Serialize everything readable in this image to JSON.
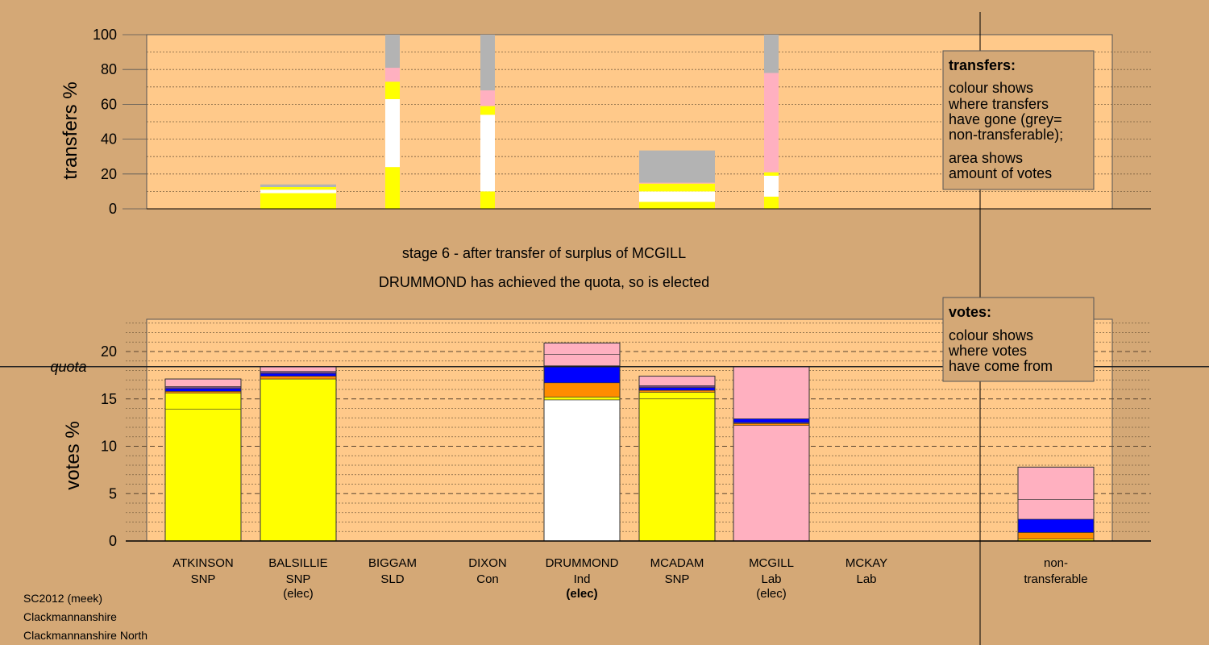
{
  "colors": {
    "background": "#d4a876",
    "plot": "#ffc98a",
    "SNP": "#ffff00",
    "Ind": "#ffffff",
    "Lab": "#ffb0c0",
    "Con": "#0000ff",
    "SLD": "#ff8c00",
    "other": "#7a4a8a",
    "nontransferable": "#b3b3b3"
  },
  "stage": {
    "line1": "stage 6 - after transfer of surplus of MCGILL",
    "line2": "DRUMMOND has achieved the quota, so is elected"
  },
  "footer": [
    "SC2012 (meek)",
    "Clackmannanshire",
    "Clackmannanshire North"
  ],
  "legend_transfers": {
    "title": "transfers:",
    "lines": [
      "colour shows",
      "where transfers",
      "have gone (grey=",
      "non-transferable);"
    ],
    "lines2": [
      "area shows",
      "amount of votes"
    ]
  },
  "legend_votes": {
    "title": "votes:",
    "lines": [
      "colour shows",
      "where votes",
      "have come from"
    ]
  },
  "chart_data": [
    {
      "type": "bar",
      "stacked": true,
      "ylabel": "transfers %",
      "ylim": [
        0,
        100
      ],
      "yticks": [
        "0",
        "20",
        "40",
        "60",
        "80",
        "100"
      ],
      "grid": true,
      "categories": [
        "ATKINSON",
        "BALSILLIE",
        "BIGGAM",
        "DIXON",
        "DRUMMOND",
        "MCADAM",
        "MCGILL",
        "MCKAY"
      ],
      "bars": [
        {
          "category": "BALSILLIE",
          "segments": [
            {
              "party": "SNP",
              "value": 9
            },
            {
              "party": "Ind",
              "value": 2
            },
            {
              "party": "SNP",
              "value": 1.5
            },
            {
              "party": "nontransferable",
              "value": 1.5
            }
          ]
        },
        {
          "category": "BIGGAM",
          "segments": [
            {
              "party": "SNP",
              "value": 24
            },
            {
              "party": "Ind",
              "value": 39
            },
            {
              "party": "SNP",
              "value": 10
            },
            {
              "party": "Lab",
              "value": 8
            },
            {
              "party": "nontransferable",
              "value": 19
            }
          ]
        },
        {
          "category": "DIXON",
          "segments": [
            {
              "party": "SNP",
              "value": 10
            },
            {
              "party": "Ind",
              "value": 44
            },
            {
              "party": "SNP",
              "value": 5
            },
            {
              "party": "Lab",
              "value": 9
            },
            {
              "party": "nontransferable",
              "value": 32
            }
          ]
        },
        {
          "category": "MCADAM",
          "segments": [
            {
              "party": "SNP",
              "value": 4
            },
            {
              "party": "Ind",
              "value": 6
            },
            {
              "party": "SNP",
              "value": 4.5
            },
            {
              "party": "Lab",
              "value": 0.5
            },
            {
              "party": "nontransferable",
              "value": 18.5
            }
          ]
        },
        {
          "category": "MCGILL",
          "segments": [
            {
              "party": "SNP",
              "value": 7
            },
            {
              "party": "Ind",
              "value": 12
            },
            {
              "party": "SNP",
              "value": 2
            },
            {
              "party": "Lab",
              "value": 57
            },
            {
              "party": "nontransferable",
              "value": 22
            }
          ]
        }
      ]
    },
    {
      "type": "bar",
      "stacked": true,
      "ylabel": "votes %",
      "ylim": [
        0,
        23.5
      ],
      "yticks": [
        "0",
        "5",
        "10",
        "15",
        "20"
      ],
      "quota": 18.4,
      "quota_label": "quota",
      "grid": true,
      "categories": [
        {
          "name": "ATKINSON",
          "party": "SNP",
          "note": ""
        },
        {
          "name": "BALSILLIE",
          "party": "SNP",
          "note": "(elec)"
        },
        {
          "name": "BIGGAM",
          "party": "SLD",
          "note": ""
        },
        {
          "name": "DIXON",
          "party": "Con",
          "note": ""
        },
        {
          "name": "DRUMMOND",
          "party": "Ind",
          "note": "(elec)"
        },
        {
          "name": "MCADAM",
          "party": "SNP",
          "note": ""
        },
        {
          "name": "MCGILL",
          "party": "Lab",
          "note": "(elec)"
        },
        {
          "name": "MCKAY",
          "party": "Lab",
          "note": ""
        }
      ],
      "nontransferable_label": [
        "non-",
        "transferable"
      ],
      "bars": [
        {
          "category": "ATKINSON",
          "segments": [
            {
              "party": "SNP",
              "value": 13.9
            },
            {
              "party": "SNP",
              "value": 1.7
            },
            {
              "party": "SLD",
              "value": 0.2
            },
            {
              "party": "Con",
              "value": 0.3
            },
            {
              "party": "other",
              "value": 0.2
            },
            {
              "party": "Lab",
              "value": 0.8
            }
          ]
        },
        {
          "category": "BALSILLIE",
          "segments": [
            {
              "party": "SNP",
              "value": 17.1
            },
            {
              "party": "SLD",
              "value": 0.3
            },
            {
              "party": "Con",
              "value": 0.3
            },
            {
              "party": "other",
              "value": 0.2
            },
            {
              "party": "Lab",
              "value": 0.5
            }
          ]
        },
        {
          "category": "DRUMMOND",
          "segments": [
            {
              "party": "Ind",
              "value": 14.9
            },
            {
              "party": "SNP",
              "value": 0.3
            },
            {
              "party": "SLD",
              "value": 1.5
            },
            {
              "party": "Con",
              "value": 1.8
            },
            {
              "party": "Lab",
              "value": 1.2
            },
            {
              "party": "Lab",
              "value": 1.2
            }
          ]
        },
        {
          "category": "MCADAM",
          "segments": [
            {
              "party": "SNP",
              "value": 15.0
            },
            {
              "party": "SNP",
              "value": 0.7
            },
            {
              "party": "SLD",
              "value": 0.2
            },
            {
              "party": "Con",
              "value": 0.3
            },
            {
              "party": "other",
              "value": 0.2
            },
            {
              "party": "Lab",
              "value": 1.0
            }
          ]
        },
        {
          "category": "MCGILL",
          "segments": [
            {
              "party": "Lab",
              "value": 12.2
            },
            {
              "party": "SLD",
              "value": 0.2
            },
            {
              "party": "other",
              "value": 0.1
            },
            {
              "party": "Con",
              "value": 0.4
            },
            {
              "party": "Lab",
              "value": 5.5
            }
          ]
        },
        {
          "category": "non-transferable",
          "segments": [
            {
              "party": "SNP",
              "value": 0.2
            },
            {
              "party": "SLD",
              "value": 0.7
            },
            {
              "party": "Con",
              "value": 1.4
            },
            {
              "party": "Lab",
              "value": 2.1
            },
            {
              "party": "Lab",
              "value": 3.4
            }
          ]
        }
      ]
    }
  ]
}
